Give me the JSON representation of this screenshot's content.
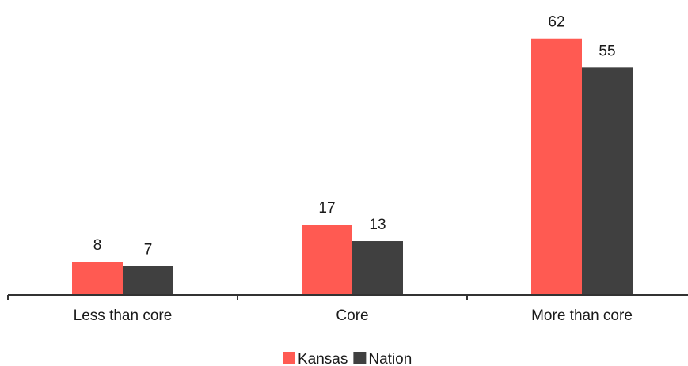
{
  "chart_data": {
    "type": "bar",
    "categories": [
      "Less than core",
      "Core",
      "More than core"
    ],
    "series": [
      {
        "name": "Kansas",
        "values": [
          8,
          17,
          62
        ],
        "color": "#ff5a52"
      },
      {
        "name": "Nation",
        "values": [
          7,
          13,
          55
        ],
        "color": "#404040"
      }
    ],
    "ylim": [
      0,
      70
    ],
    "grid": false,
    "legend_position": "bottom"
  }
}
